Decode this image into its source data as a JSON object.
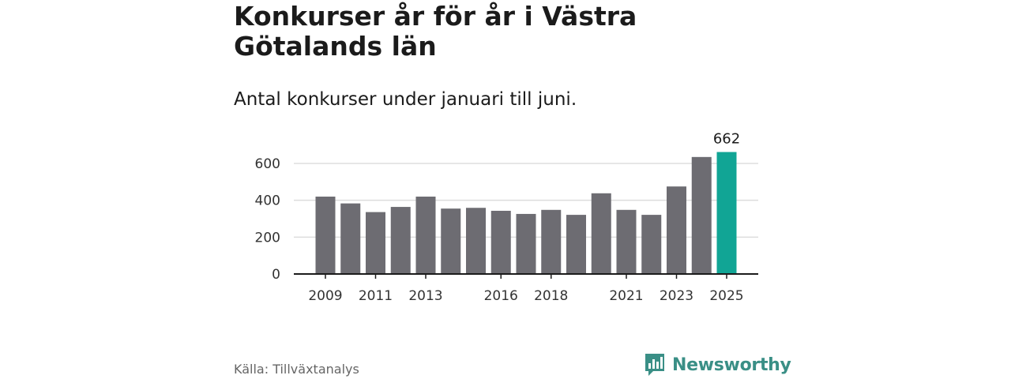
{
  "chart_data": {
    "type": "bar",
    "title": "Konkurser år för år i Västra Götalands län",
    "subtitle": "Antal konkurser under januari till juni.",
    "categories": [
      "2009",
      "2010",
      "2011",
      "2012",
      "2013",
      "2014",
      "2015",
      "2016",
      "2017",
      "2018",
      "2019",
      "2020",
      "2021",
      "2022",
      "2023",
      "2024",
      "2025"
    ],
    "values": [
      420,
      383,
      336,
      364,
      420,
      355,
      359,
      343,
      326,
      348,
      321,
      438,
      348,
      321,
      475,
      635,
      662
    ],
    "x_tick_labels": [
      "2009",
      "",
      "2011",
      "",
      "2013",
      "",
      "",
      "2016",
      "",
      "2018",
      "",
      "",
      "2021",
      "",
      "2023",
      "",
      "2025"
    ],
    "y_ticks": [
      "0",
      "200",
      "400",
      "600"
    ],
    "ylim": [
      0,
      700
    ],
    "highlight_index": 16,
    "highlight_label": "662",
    "colors": {
      "bar": "#6d6c72",
      "highlight": "#11a595",
      "grid": "#dddddd",
      "axis": "#1b1b1b"
    },
    "grid": true
  },
  "footer": {
    "source": "Källa: Tillväxtanalys",
    "brand": "Newsworthy",
    "brand_icon": "bar-chart-speech-bubble-icon",
    "brand_color": "#3a8f86"
  }
}
